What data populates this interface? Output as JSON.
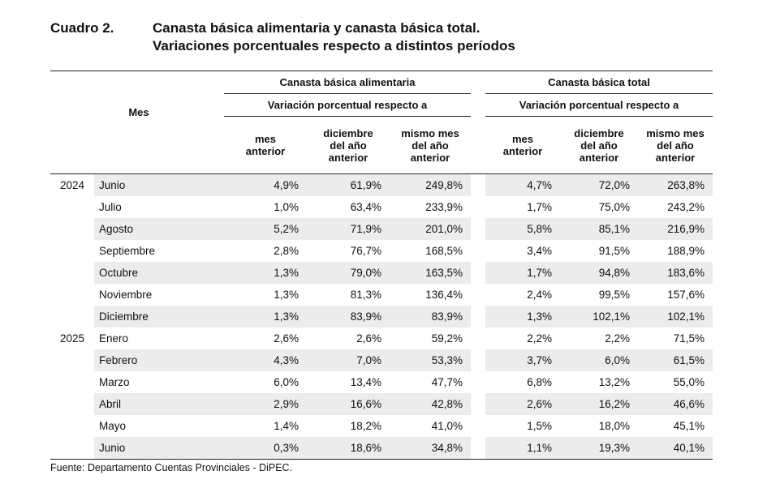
{
  "header": {
    "label": "Cuadro 2.",
    "title_line1": "Canasta básica alimentaria y canasta básica total.",
    "title_line2": "Variaciones porcentuales respecto a distintos períodos"
  },
  "table": {
    "mes_header": "Mes",
    "group1": "Canasta básica alimentaria",
    "group2": "Canasta básica total",
    "subheader": "Variación porcentual respecto a",
    "cols": {
      "c1_l1": "mes",
      "c1_l2": "anterior",
      "c2_l1": "diciembre",
      "c2_l2": "del año",
      "c2_l3": "anterior",
      "c3_l1": "mismo mes",
      "c3_l2": "del año",
      "c3_l3": "anterior"
    },
    "rows": [
      {
        "year": "2024",
        "mes": "Junio",
        "v": [
          "4,9%",
          "61,9%",
          "249,8%",
          "4,7%",
          "72,0%",
          "263,8%"
        ]
      },
      {
        "year": "",
        "mes": "Julio",
        "v": [
          "1,0%",
          "63,4%",
          "233,9%",
          "1,7%",
          "75,0%",
          "243,2%"
        ]
      },
      {
        "year": "",
        "mes": "Agosto",
        "v": [
          "5,2%",
          "71,9%",
          "201,0%",
          "5,8%",
          "85,1%",
          "216,9%"
        ]
      },
      {
        "year": "",
        "mes": "Septiembre",
        "v": [
          "2,8%",
          "76,7%",
          "168,5%",
          "3,4%",
          "91,5%",
          "188,9%"
        ]
      },
      {
        "year": "",
        "mes": "Octubre",
        "v": [
          "1,3%",
          "79,0%",
          "163,5%",
          "1,7%",
          "94,8%",
          "183,6%"
        ]
      },
      {
        "year": "",
        "mes": "Noviembre",
        "v": [
          "1,3%",
          "81,3%",
          "136,4%",
          "2,4%",
          "99,5%",
          "157,6%"
        ]
      },
      {
        "year": "",
        "mes": "Diciembre",
        "v": [
          "1,3%",
          "83,9%",
          "83,9%",
          "1,3%",
          "102,1%",
          "102,1%"
        ]
      },
      {
        "year": "2025",
        "mes": "Enero",
        "v": [
          "2,6%",
          "2,6%",
          "59,2%",
          "2,2%",
          "2,2%",
          "71,5%"
        ]
      },
      {
        "year": "",
        "mes": "Febrero",
        "v": [
          "4,3%",
          "7,0%",
          "53,3%",
          "3,7%",
          "6,0%",
          "61,5%"
        ]
      },
      {
        "year": "",
        "mes": "Marzo",
        "v": [
          "6,0%",
          "13,4%",
          "47,7%",
          "6,8%",
          "13,2%",
          "55,0%"
        ]
      },
      {
        "year": "",
        "mes": "Abril",
        "v": [
          "2,9%",
          "16,6%",
          "42,8%",
          "2,6%",
          "16,2%",
          "46,6%"
        ]
      },
      {
        "year": "",
        "mes": "Mayo",
        "v": [
          "1,4%",
          "18,2%",
          "41,0%",
          "1,5%",
          "18,0%",
          "45,1%"
        ]
      },
      {
        "year": "",
        "mes": "Junio",
        "v": [
          "0,3%",
          "18,6%",
          "34,8%",
          "1,1%",
          "19,3%",
          "40,1%"
        ]
      }
    ]
  },
  "source": "Fuente: Departamento Cuentas Provinciales - DiPEC."
}
